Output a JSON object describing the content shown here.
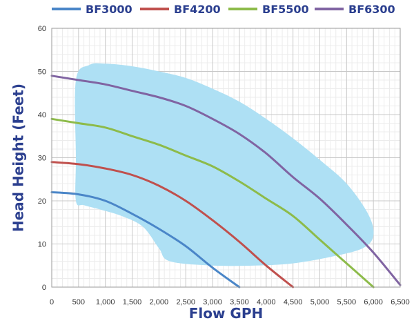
{
  "chart_data": {
    "type": "line",
    "title": "",
    "xlabel": "Flow GPH",
    "ylabel": "Head Height (Feet)",
    "xlim": [
      0,
      6500
    ],
    "ylim": [
      0,
      60
    ],
    "grid": true,
    "legend_position": "top",
    "x_ticks": [
      0,
      500,
      1000,
      1500,
      2000,
      2500,
      3000,
      3500,
      4000,
      4500,
      5000,
      5500,
      6000,
      6500
    ],
    "x_tick_labels": [
      "0",
      "500",
      "1,000",
      "1,500",
      "2,000",
      "2,500",
      "3,000",
      "3,500",
      "4,000",
      "4,500",
      "5,000",
      "5,500",
      "6,000",
      "6,500"
    ],
    "y_ticks": [
      0,
      10,
      20,
      30,
      40,
      50,
      60
    ],
    "y_tick_labels": [
      "0",
      "10",
      "20",
      "30",
      "40",
      "50",
      "60"
    ],
    "series": [
      {
        "name": "BF3000",
        "color": "#4a86c8",
        "x": [
          0,
          500,
          1000,
          1500,
          2000,
          2500,
          3000,
          3500
        ],
        "y": [
          22,
          21.5,
          20,
          17,
          13.5,
          9.5,
          4.5,
          0
        ]
      },
      {
        "name": "BF4200",
        "color": "#c0504d",
        "x": [
          0,
          500,
          1000,
          1500,
          2000,
          2500,
          3000,
          3500,
          4000,
          4500
        ],
        "y": [
          29,
          28.5,
          27.5,
          26,
          23.5,
          20,
          15.5,
          10.5,
          5,
          0
        ]
      },
      {
        "name": "BF5500",
        "color": "#8dbb4a",
        "x": [
          0,
          500,
          1000,
          1500,
          2000,
          2500,
          3000,
          3500,
          4000,
          4500,
          5000,
          5500,
          6000
        ],
        "y": [
          39,
          38,
          37,
          35,
          33,
          30.5,
          28,
          24.5,
          20.5,
          16.5,
          11,
          5.5,
          0
        ]
      },
      {
        "name": "BF6300",
        "color": "#8064a2",
        "x": [
          0,
          500,
          1000,
          1500,
          2000,
          2500,
          3000,
          3500,
          4000,
          4500,
          5000,
          5500,
          6000,
          6500
        ],
        "y": [
          49,
          48,
          47,
          45.5,
          44,
          42,
          39,
          35.5,
          31,
          25.5,
          20.5,
          14.5,
          8,
          0.5
        ]
      }
    ],
    "shaded_region": {
      "color": "#aee0f4",
      "points": [
        [
          450,
          48
        ],
        [
          700,
          51.5
        ],
        [
          1000,
          51.8
        ],
        [
          1500,
          51.2
        ],
        [
          2000,
          50
        ],
        [
          2500,
          48.5
        ],
        [
          3000,
          46
        ],
        [
          3500,
          43
        ],
        [
          4000,
          39
        ],
        [
          4500,
          34.5
        ],
        [
          5000,
          29.5
        ],
        [
          5500,
          24
        ],
        [
          5900,
          17
        ],
        [
          6000,
          12
        ],
        [
          5800,
          9
        ],
        [
          5200,
          7
        ],
        [
          4500,
          5.5
        ],
        [
          3800,
          5
        ],
        [
          3000,
          5
        ],
        [
          2200,
          6
        ],
        [
          2000,
          9
        ],
        [
          1700,
          14
        ],
        [
          1300,
          16.5
        ],
        [
          900,
          18
        ],
        [
          600,
          19
        ],
        [
          450,
          20
        ],
        [
          450,
          30
        ]
      ]
    }
  }
}
